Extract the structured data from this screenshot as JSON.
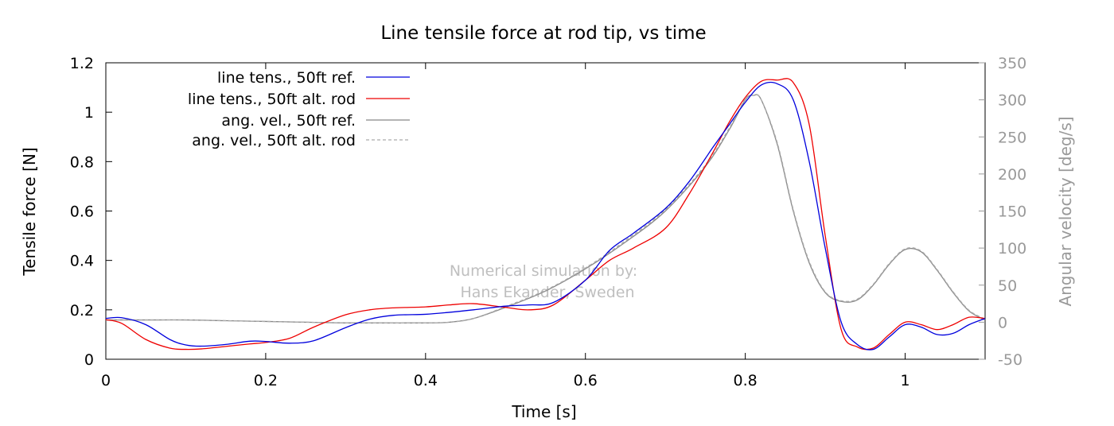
{
  "chart_data": {
    "type": "line",
    "title": "Line tensile force at rod tip, vs time",
    "xlabel": "Time [s]",
    "ylabel": "Tensile force [N]",
    "y2label": "Angular velocity [deg/s]",
    "xlim": [
      0,
      1.1
    ],
    "ylim": [
      0,
      1.2
    ],
    "y2lim": [
      -50,
      350
    ],
    "xticks": [
      "0",
      "0.2",
      "0.4",
      "0.6",
      "0.8",
      "1"
    ],
    "xtick_values": [
      0,
      0.2,
      0.4,
      0.6,
      0.8,
      1.0
    ],
    "yticks": [
      "0",
      "0.2",
      "0.4",
      "0.6",
      "0.8",
      "1",
      "1.2"
    ],
    "ytick_values": [
      0,
      0.2,
      0.4,
      0.6,
      0.8,
      1.0,
      1.2
    ],
    "y2ticks": [
      "-50",
      "0",
      "50",
      "100",
      "150",
      "200",
      "250",
      "300",
      "350"
    ],
    "y2tick_values": [
      -50,
      0,
      50,
      100,
      150,
      200,
      250,
      300,
      350
    ],
    "grid": false,
    "legend_position": "top-left",
    "annotation": [
      "Numerical simulation by:",
      "Hans Ekander, Sweden"
    ],
    "series": [
      {
        "name": "line tens., 50ft ref.",
        "axis": "left",
        "color": "#0000dd",
        "dash": "solid",
        "x": [
          0,
          0.02,
          0.05,
          0.08,
          0.1,
          0.12,
          0.15,
          0.18,
          0.2,
          0.23,
          0.26,
          0.3,
          0.33,
          0.36,
          0.4,
          0.43,
          0.46,
          0.5,
          0.53,
          0.56,
          0.6,
          0.63,
          0.66,
          0.7,
          0.73,
          0.76,
          0.78,
          0.8,
          0.82,
          0.84,
          0.86,
          0.88,
          0.9,
          0.92,
          0.94,
          0.96,
          0.98,
          1.0,
          1.02,
          1.04,
          1.06,
          1.08,
          1.1
        ],
        "y": [
          0.165,
          0.168,
          0.14,
          0.08,
          0.058,
          0.053,
          0.06,
          0.073,
          0.072,
          0.065,
          0.075,
          0.128,
          0.162,
          0.178,
          0.182,
          0.19,
          0.2,
          0.215,
          0.22,
          0.23,
          0.32,
          0.44,
          0.51,
          0.61,
          0.72,
          0.86,
          0.95,
          1.04,
          1.11,
          1.115,
          1.05,
          0.8,
          0.45,
          0.15,
          0.06,
          0.04,
          0.09,
          0.14,
          0.13,
          0.1,
          0.105,
          0.14,
          0.165
        ]
      },
      {
        "name": "line tens., 50ft alt. rod",
        "axis": "left",
        "color": "#ee0000",
        "dash": "solid",
        "x": [
          0,
          0.02,
          0.05,
          0.08,
          0.1,
          0.12,
          0.15,
          0.18,
          0.2,
          0.23,
          0.26,
          0.3,
          0.33,
          0.36,
          0.4,
          0.43,
          0.46,
          0.5,
          0.53,
          0.56,
          0.6,
          0.63,
          0.66,
          0.7,
          0.73,
          0.76,
          0.78,
          0.8,
          0.82,
          0.84,
          0.86,
          0.88,
          0.9,
          0.92,
          0.94,
          0.96,
          0.98,
          1.0,
          1.02,
          1.04,
          1.06,
          1.08,
          1.1
        ],
        "y": [
          0.16,
          0.145,
          0.08,
          0.045,
          0.04,
          0.042,
          0.052,
          0.062,
          0.068,
          0.085,
          0.13,
          0.18,
          0.2,
          0.208,
          0.212,
          0.22,
          0.225,
          0.21,
          0.2,
          0.22,
          0.32,
          0.4,
          0.45,
          0.53,
          0.67,
          0.84,
          0.96,
          1.06,
          1.125,
          1.13,
          1.12,
          0.95,
          0.5,
          0.12,
          0.05,
          0.045,
          0.1,
          0.15,
          0.14,
          0.12,
          0.14,
          0.17,
          0.165
        ]
      },
      {
        "name": "ang. vel., 50ft ref.",
        "axis": "right",
        "color": "#888888",
        "dash": "solid",
        "x": [
          0,
          0.05,
          0.1,
          0.15,
          0.2,
          0.25,
          0.3,
          0.35,
          0.4,
          0.43,
          0.46,
          0.5,
          0.55,
          0.6,
          0.65,
          0.7,
          0.75,
          0.78,
          0.8,
          0.81,
          0.82,
          0.84,
          0.86,
          0.88,
          0.9,
          0.92,
          0.94,
          0.96,
          0.98,
          1.0,
          1.02,
          1.04,
          1.06,
          1.08,
          1.1
        ],
        "y": [
          3,
          3,
          3,
          2,
          1,
          0,
          -1,
          -1,
          -1,
          0,
          5,
          20,
          42,
          72,
          108,
          150,
          210,
          260,
          300,
          306,
          300,
          240,
          150,
          80,
          40,
          28,
          30,
          50,
          78,
          98,
          95,
          70,
          40,
          15,
          3
        ]
      },
      {
        "name": "ang. vel., 50ft alt. rod",
        "axis": "right",
        "color": "#aaaaaa",
        "dash": "dashed",
        "x": [
          0,
          0.05,
          0.1,
          0.15,
          0.2,
          0.25,
          0.3,
          0.35,
          0.4,
          0.43,
          0.46,
          0.5,
          0.55,
          0.6,
          0.65,
          0.7,
          0.75,
          0.78,
          0.8,
          0.81,
          0.82,
          0.84,
          0.86,
          0.88,
          0.9,
          0.92,
          0.94,
          0.96,
          0.98,
          1.0,
          1.02,
          1.04,
          1.06,
          1.08,
          1.1
        ],
        "y": [
          3,
          3,
          3,
          2,
          1,
          0,
          -1,
          -1,
          -1,
          0,
          5,
          21,
          43,
          73,
          110,
          152,
          212,
          262,
          301,
          306,
          300,
          242,
          152,
          82,
          41,
          29,
          31,
          51,
          79,
          99,
          96,
          71,
          41,
          16,
          4
        ]
      }
    ]
  }
}
